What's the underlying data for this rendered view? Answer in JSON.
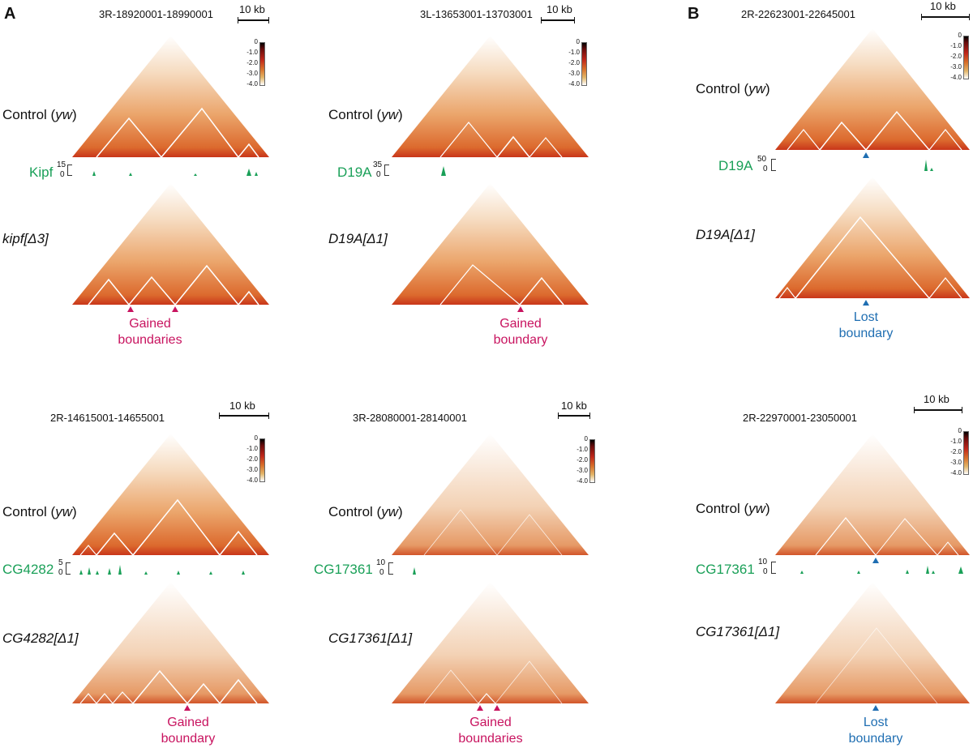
{
  "colors": {
    "gain": "#c8135f",
    "lost": "#1f6eb2",
    "track": "#1aa058"
  },
  "panels": {
    "A": "A",
    "B": "B"
  },
  "scale_label": "10 kb",
  "legend_ticks": [
    "0",
    "-1.0",
    "-2.0",
    "-3.0",
    "-4.0"
  ],
  "control_label_prefix": "Control (",
  "control_label_italic": "yw",
  "control_label_suffix": ")",
  "maps": [
    {
      "region": "3R-18920001-18990001",
      "track_label": "Kipf",
      "track_max": "15",
      "track_min": "0",
      "mutant": "kipf[Δ3]",
      "annotation_line1": "Gained",
      "annotation_line2": "boundaries",
      "annotation_type": "gain"
    },
    {
      "region": "3L-13653001-13703001",
      "track_label": "D19A",
      "track_max": "35",
      "track_min": "0",
      "mutant": "D19A[Δ1]",
      "annotation_line1": "Gained",
      "annotation_line2": "boundary",
      "annotation_type": "gain"
    },
    {
      "region": "2R-22623001-22645001",
      "track_label": "D19A",
      "track_max": "50",
      "track_min": "0",
      "mutant": "D19A[Δ1]",
      "annotation_line1": "Lost",
      "annotation_line2": "boundary",
      "annotation_type": "lost"
    },
    {
      "region": "2R-14615001-14655001",
      "track_label": "CG4282",
      "track_max": "5",
      "track_min": "0",
      "mutant": "CG4282[Δ1]",
      "annotation_line1": "Gained",
      "annotation_line2": "boundary",
      "annotation_type": "gain"
    },
    {
      "region": "3R-28080001-28140001",
      "track_label": "CG17361",
      "track_max": "10",
      "track_min": "0",
      "mutant": "CG17361[Δ1]",
      "annotation_line1": "Gained",
      "annotation_line2": "boundaries",
      "annotation_type": "gain"
    },
    {
      "region": "2R-22970001-23050001",
      "track_label": "CG17361",
      "track_max": "10",
      "track_min": "0",
      "mutant": "CG17361[Δ1]",
      "annotation_line1": "Lost",
      "annotation_line2": "boundary",
      "annotation_type": "lost"
    }
  ]
}
